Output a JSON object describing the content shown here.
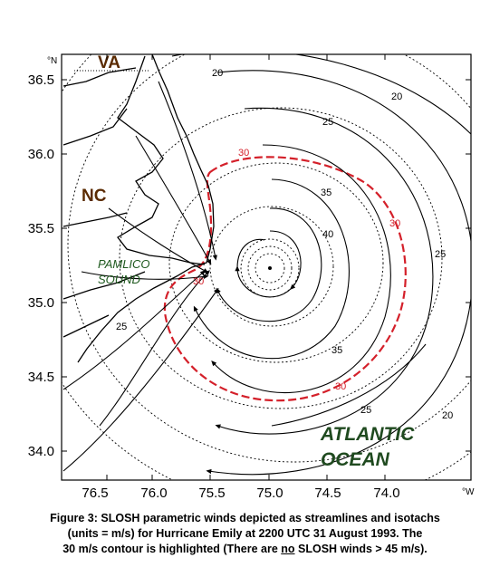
{
  "map": {
    "lat_labels": [
      "36.5",
      "36.0",
      "35.5",
      "35.0",
      "34.5",
      "34.0"
    ],
    "lon_labels": [
      "76.5",
      "76.0",
      "75.5",
      "75.0",
      "74.5",
      "74.0"
    ],
    "lat_unit": "°N",
    "lon_unit": "°W",
    "place_labels": {
      "va": "VA",
      "nc": "NC",
      "pamlico_1": "PAMLICO",
      "pamlico_2": "SOUND",
      "atlantic_1": "ATLANTIC",
      "atlantic_2": "OCEAN"
    },
    "contour_labels": [
      "20",
      "25",
      "30",
      "35",
      "40",
      "30",
      "35",
      "30",
      "25",
      "30",
      "25",
      "25",
      "20",
      "20"
    ],
    "colors": {
      "state_label": "#5a2a00",
      "sound_label": "#1f5a1f",
      "ocean_label": "#1f4a1f",
      "highlight": "#d4202a",
      "line": "#000000"
    }
  },
  "caption": {
    "line1": "Figure 3: SLOSH parametric winds depicted as streamlines and isotachs",
    "line2": "(units = m/s) for Hurricane Emily at 2200 UTC 31 August 1993. The",
    "line3_pre": "30 m/s contour is highlighted (There are ",
    "line3_no": "no",
    "line3_post": " SLOSH winds > 45 m/s)."
  }
}
